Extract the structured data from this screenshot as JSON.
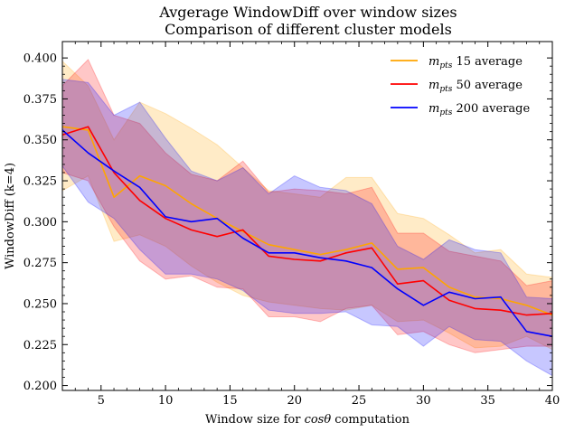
{
  "chart_data": {
    "type": "line",
    "title": "Avgerage WindowDiff over window sizes",
    "subtitle": "Comparison of different cluster models",
    "xlabel_prefix": "Window size for ",
    "xlabel_math": "cos",
    "xlabel_theta": "θ",
    "xlabel_suffix": " computation",
    "ylabel": "WindowDiff (k=4)",
    "xlim": [
      2,
      40
    ],
    "ylim": [
      0.197,
      0.41
    ],
    "xticks": [
      5,
      10,
      15,
      20,
      25,
      30,
      35,
      40
    ],
    "yticks": [
      0.2,
      0.225,
      0.25,
      0.275,
      0.3,
      0.325,
      0.35,
      0.375,
      0.4
    ],
    "ytick_labels": [
      "0.200",
      "0.225",
      "0.250",
      "0.275",
      "0.300",
      "0.325",
      "0.350",
      "0.375",
      "0.400"
    ],
    "legend_position": "top-right",
    "grid": false,
    "x": [
      2,
      4,
      6,
      8,
      10,
      12,
      14,
      16,
      18,
      20,
      22,
      24,
      26,
      28,
      30,
      32,
      34,
      36,
      38,
      40
    ],
    "series": [
      {
        "name_italic": "m",
        "name_sub": "pts",
        "name_rest": " 15 average",
        "color": "#FFA500",
        "values": [
          0.358,
          0.356,
          0.315,
          0.328,
          0.322,
          0.311,
          0.302,
          0.294,
          0.286,
          0.283,
          0.28,
          0.283,
          0.287,
          0.271,
          0.272,
          0.26,
          0.254,
          0.253,
          0.249,
          0.243
        ],
        "upper": [
          0.398,
          0.383,
          0.35,
          0.373,
          0.366,
          0.357,
          0.347,
          0.333,
          0.319,
          0.317,
          0.315,
          0.327,
          0.327,
          0.305,
          0.302,
          0.292,
          0.281,
          0.283,
          0.268,
          0.266
        ],
        "lower": [
          0.319,
          0.328,
          0.288,
          0.292,
          0.285,
          0.273,
          0.263,
          0.255,
          0.251,
          0.249,
          0.247,
          0.246,
          0.249,
          0.239,
          0.24,
          0.232,
          0.223,
          0.224,
          0.23,
          0.222
        ]
      },
      {
        "name_italic": "m",
        "name_sub": "pts",
        "name_rest": " 50 average",
        "color": "#FF0000",
        "values": [
          0.353,
          0.358,
          0.33,
          0.313,
          0.302,
          0.295,
          0.291,
          0.295,
          0.279,
          0.277,
          0.276,
          0.281,
          0.284,
          0.262,
          0.264,
          0.252,
          0.247,
          0.246,
          0.243,
          0.244
        ],
        "upper": [
          0.383,
          0.399,
          0.365,
          0.36,
          0.342,
          0.329,
          0.325,
          0.337,
          0.318,
          0.32,
          0.319,
          0.317,
          0.321,
          0.293,
          0.293,
          0.282,
          0.279,
          0.276,
          0.261,
          0.264
        ],
        "lower": [
          0.33,
          0.325,
          0.297,
          0.276,
          0.265,
          0.267,
          0.26,
          0.259,
          0.242,
          0.242,
          0.239,
          0.247,
          0.249,
          0.231,
          0.233,
          0.225,
          0.22,
          0.222,
          0.224,
          0.224
        ]
      },
      {
        "name_italic": "m",
        "name_sub": "pts",
        "name_rest": " 200 average",
        "color": "#0000FF",
        "values": [
          0.356,
          0.342,
          0.331,
          0.321,
          0.303,
          0.3,
          0.302,
          0.29,
          0.281,
          0.281,
          0.278,
          0.276,
          0.272,
          0.259,
          0.249,
          0.257,
          0.253,
          0.254,
          0.233,
          0.23
        ],
        "upper": [
          0.387,
          0.385,
          0.365,
          0.373,
          0.351,
          0.331,
          0.325,
          0.333,
          0.317,
          0.328,
          0.321,
          0.319,
          0.311,
          0.285,
          0.277,
          0.289,
          0.283,
          0.281,
          0.254,
          0.253
        ],
        "lower": [
          0.334,
          0.312,
          0.302,
          0.283,
          0.268,
          0.268,
          0.265,
          0.258,
          0.246,
          0.244,
          0.244,
          0.245,
          0.237,
          0.236,
          0.224,
          0.236,
          0.228,
          0.227,
          0.215,
          0.206
        ]
      }
    ]
  }
}
